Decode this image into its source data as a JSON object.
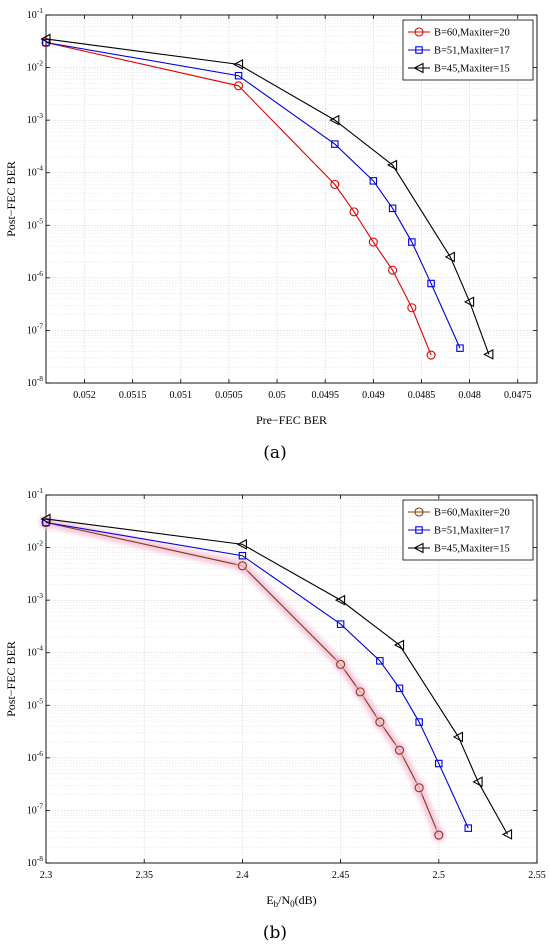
{
  "chart_data": [
    {
      "type": "line",
      "panel": "a",
      "caption": "(a)",
      "xlabel": "Pre−FEC BER",
      "ylabel": "Post−FEC BER",
      "xscale": "linear",
      "xreversed": true,
      "xlim": [
        0.0524,
        0.0473
      ],
      "xticks": [
        0.052,
        0.0515,
        0.051,
        0.0505,
        0.05,
        0.0495,
        0.049,
        0.0485,
        0.048,
        0.0475
      ],
      "xtick_labels": [
        "0.052",
        "0.0515",
        "0.051",
        "0.0505",
        "0.05",
        "0.0495",
        "0.049",
        "0.0485",
        "0.048",
        "0.0475"
      ],
      "yscale": "log",
      "ylim_exp": [
        -8,
        -1
      ],
      "grid": true,
      "legend_position": "top-right",
      "series": [
        {
          "name": "B=60,Maxiter=20",
          "color": "#e00000",
          "marker": "circle",
          "x": [
            0.0524,
            0.0504,
            0.0494,
            0.0492,
            0.049,
            0.0488,
            0.0486,
            0.0484
          ],
          "y": [
            0.03,
            0.0045,
            6e-05,
            1.8e-05,
            4.8e-06,
            1.4e-06,
            2.7e-07,
            3.4e-08
          ]
        },
        {
          "name": "B=51,Maxiter=17",
          "color": "#0000e0",
          "marker": "square",
          "x": [
            0.0524,
            0.0504,
            0.0494,
            0.049,
            0.0488,
            0.0486,
            0.0484,
            0.0481
          ],
          "y": [
            0.03,
            0.007,
            0.00035,
            7e-05,
            2.1e-05,
            4.8e-06,
            7.8e-07,
            4.6e-08
          ]
        },
        {
          "name": "B=45,Maxiter=15",
          "color": "#000000",
          "marker": "triangle-left",
          "x": [
            0.0524,
            0.0504,
            0.0494,
            0.0488,
            0.0482,
            0.048,
            0.0478
          ],
          "y": [
            0.035,
            0.0115,
            0.001,
            0.00014,
            2.5e-06,
            3.5e-07,
            3.5e-08
          ]
        }
      ]
    },
    {
      "type": "line",
      "panel": "b",
      "caption": "(b)",
      "xlabel_parts": [
        "E",
        "b",
        "/N",
        "0",
        "(dB)"
      ],
      "ylabel": "Post−FEC BER",
      "xscale": "linear",
      "xreversed": false,
      "xlim": [
        2.3,
        2.55
      ],
      "xticks": [
        2.3,
        2.35,
        2.4,
        2.45,
        2.5,
        2.55
      ],
      "xtick_labels": [
        "2.3",
        "2.35",
        "2.4",
        "2.45",
        "2.5",
        "2.55"
      ],
      "yscale": "log",
      "ylim_exp": [
        -8,
        -1
      ],
      "grid": true,
      "legend_position": "top-right",
      "series": [
        {
          "name": "B=60,Maxiter=20",
          "color": "#8b3a10",
          "marker": "circle",
          "glow": "#f3c4dc",
          "x": [
            2.3,
            2.4,
            2.45,
            2.46,
            2.47,
            2.48,
            2.49,
            2.5
          ],
          "y": [
            0.03,
            0.0045,
            6e-05,
            1.8e-05,
            4.8e-06,
            1.4e-06,
            2.7e-07,
            3.4e-08
          ]
        },
        {
          "name": "B=51,Maxiter=17",
          "color": "#0000e0",
          "marker": "square",
          "x": [
            2.3,
            2.4,
            2.45,
            2.47,
            2.48,
            2.49,
            2.5,
            2.515
          ],
          "y": [
            0.03,
            0.007,
            0.00035,
            7e-05,
            2.1e-05,
            4.8e-06,
            7.8e-07,
            4.6e-08
          ]
        },
        {
          "name": "B=45,Maxiter=15",
          "color": "#000000",
          "marker": "triangle-left",
          "x": [
            2.3,
            2.4,
            2.45,
            2.48,
            2.51,
            2.52,
            2.535
          ],
          "y": [
            0.035,
            0.0115,
            0.001,
            0.00014,
            2.5e-06,
            3.5e-07,
            3.5e-08
          ]
        }
      ]
    }
  ]
}
